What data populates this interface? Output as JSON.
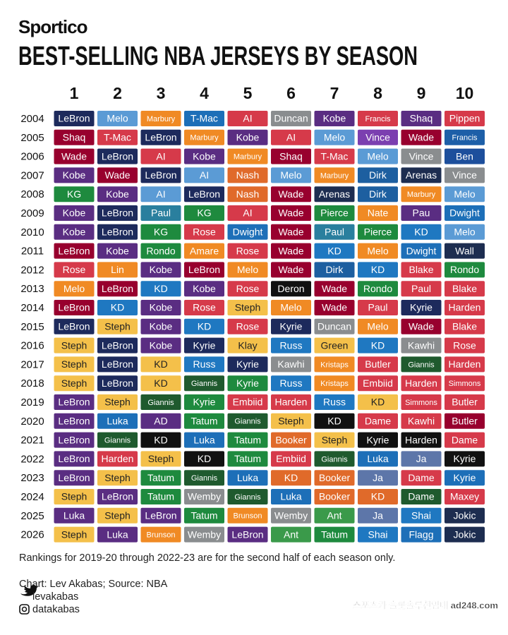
{
  "header": {
    "brand": "Sportico",
    "title": "BEST-SELLING NBA JERSEYS BY SEASON"
  },
  "table": {
    "columns": [
      1,
      2,
      3,
      4,
      5,
      6,
      7,
      8,
      9,
      10
    ],
    "rows": [
      {
        "season": "2004",
        "players": [
          "LeBron",
          "Melo",
          "Marbury",
          "T-Mac",
          "AI",
          "Duncan",
          "Kobe",
          "Francis",
          "Shaq",
          "Pippen"
        ],
        "colors": [
          "#1d2a5c",
          "#5b9bd5",
          "#f08a24",
          "#1d6fb8",
          "#d63a4a",
          "#8a8d8f",
          "#5a2d82",
          "#d63a4a",
          "#5a2d82",
          "#d63a4a"
        ]
      },
      {
        "season": "2005",
        "players": [
          "Shaq",
          "T-Mac",
          "LeBron",
          "Marbury",
          "Kobe",
          "AI",
          "Melo",
          "Vince",
          "Wade",
          "Francis"
        ],
        "colors": [
          "#98002e",
          "#d63a4a",
          "#1d2a5c",
          "#f08a24",
          "#5a2d82",
          "#d63a4a",
          "#5b9bd5",
          "#7b3fb0",
          "#98002e",
          "#1d5fa8"
        ]
      },
      {
        "season": "2006",
        "players": [
          "Wade",
          "LeBron",
          "AI",
          "Kobe",
          "Marbury",
          "Shaq",
          "T-Mac",
          "Melo",
          "Vince",
          "Ben"
        ],
        "colors": [
          "#98002e",
          "#1d2a5c",
          "#d63a4a",
          "#5a2d82",
          "#f08a24",
          "#98002e",
          "#d63a4a",
          "#5b9bd5",
          "#8a8d8f",
          "#1d4f9c"
        ]
      },
      {
        "season": "2007",
        "players": [
          "Kobe",
          "Wade",
          "LeBron",
          "AI",
          "Nash",
          "Melo",
          "Marbury",
          "Dirk",
          "Arenas",
          "Vince"
        ],
        "colors": [
          "#5a2d82",
          "#98002e",
          "#1d2a5c",
          "#5b9bd5",
          "#e06a2a",
          "#5b9bd5",
          "#f08a24",
          "#1d5fa0",
          "#1d2d50",
          "#8a8d8f"
        ]
      },
      {
        "season": "2008",
        "players": [
          "KG",
          "Kobe",
          "AI",
          "LeBron",
          "Nash",
          "Wade",
          "Arenas",
          "Dirk",
          "Marbury",
          "Melo"
        ],
        "colors": [
          "#1e8a3e",
          "#5a2d82",
          "#5b9bd5",
          "#1d2a5c",
          "#e06a2a",
          "#98002e",
          "#1d2d50",
          "#1d5fa0",
          "#f08a24",
          "#5b9bd5"
        ]
      },
      {
        "season": "2009",
        "players": [
          "Kobe",
          "LeBron",
          "Paul",
          "KG",
          "AI",
          "Wade",
          "Pierce",
          "Nate",
          "Pau",
          "Dwight"
        ],
        "colors": [
          "#5a2d82",
          "#1d2a5c",
          "#2a7f9e",
          "#1e8a3e",
          "#d63a4a",
          "#98002e",
          "#1e8a3e",
          "#f08a24",
          "#5a2d82",
          "#1d6fb8"
        ]
      },
      {
        "season": "2010",
        "players": [
          "Kobe",
          "LeBron",
          "KG",
          "Rose",
          "Dwight",
          "Wade",
          "Paul",
          "Pierce",
          "KD",
          "Melo"
        ],
        "colors": [
          "#5a2d82",
          "#1d2a5c",
          "#1e8a3e",
          "#d63a4a",
          "#1d6fb8",
          "#98002e",
          "#2a7f9e",
          "#1e8a3e",
          "#1f78c1",
          "#5b9bd5"
        ]
      },
      {
        "season": "2011",
        "players": [
          "LeBron",
          "Kobe",
          "Rondo",
          "Amare",
          "Rose",
          "Wade",
          "KD",
          "Melo",
          "Dwight",
          "Wall"
        ],
        "colors": [
          "#98002e",
          "#5a2d82",
          "#1e8a3e",
          "#f08a24",
          "#d63a4a",
          "#98002e",
          "#1f78c1",
          "#f08a24",
          "#1d6fb8",
          "#1d2d50"
        ]
      },
      {
        "season": "2012",
        "players": [
          "Rose",
          "Lin",
          "Kobe",
          "LeBron",
          "Melo",
          "Wade",
          "Dirk",
          "KD",
          "Blake",
          "Rondo"
        ],
        "colors": [
          "#d63a4a",
          "#f08a24",
          "#5a2d82",
          "#98002e",
          "#f08a24",
          "#98002e",
          "#1d5fa0",
          "#1f78c1",
          "#d63a4a",
          "#1e8a3e"
        ]
      },
      {
        "season": "2013",
        "players": [
          "Melo",
          "LeBron",
          "KD",
          "Kobe",
          "Rose",
          "Deron",
          "Wade",
          "Rondo",
          "Paul",
          "Blake"
        ],
        "colors": [
          "#f08a24",
          "#98002e",
          "#1f78c1",
          "#5a2d82",
          "#d63a4a",
          "#111111",
          "#98002e",
          "#1e8a3e",
          "#d63a4a",
          "#d63a4a"
        ]
      },
      {
        "season": "2014",
        "players": [
          "LeBron",
          "KD",
          "Kobe",
          "Rose",
          "Steph",
          "Melo",
          "Wade",
          "Paul",
          "Kyrie",
          "Harden"
        ],
        "colors": [
          "#98002e",
          "#1f78c1",
          "#5a2d82",
          "#d63a4a",
          "#f4c04a",
          "#f08a24",
          "#98002e",
          "#d63a4a",
          "#1d2a5c",
          "#d63a4a"
        ]
      },
      {
        "season": "2015",
        "players": [
          "LeBron",
          "Steph",
          "Kobe",
          "KD",
          "Rose",
          "Kyrie",
          "Duncan",
          "Melo",
          "Wade",
          "Blake"
        ],
        "colors": [
          "#1d2a5c",
          "#f4c04a",
          "#5a2d82",
          "#1f78c1",
          "#d63a4a",
          "#1d2a5c",
          "#8a8d8f",
          "#f08a24",
          "#98002e",
          "#d63a4a"
        ]
      },
      {
        "season": "2016",
        "players": [
          "Steph",
          "LeBron",
          "Kobe",
          "Kyrie",
          "Klay",
          "Russ",
          "Green",
          "KD",
          "Kawhi",
          "Rose"
        ],
        "colors": [
          "#f4c04a",
          "#1d2a5c",
          "#5a2d82",
          "#1d2a5c",
          "#f4c04a",
          "#1f78c1",
          "#f4c04a",
          "#1f78c1",
          "#8a8d8f",
          "#d63a4a"
        ]
      },
      {
        "season": "2017",
        "players": [
          "Steph",
          "LeBron",
          "KD",
          "Russ",
          "Kyrie",
          "Kawhi",
          "Kristaps",
          "Butler",
          "Giannis",
          "Harden"
        ],
        "colors": [
          "#f4c04a",
          "#1d2a5c",
          "#f4c04a",
          "#1f78c1",
          "#1d2a5c",
          "#8a8d8f",
          "#f08a24",
          "#d63a4a",
          "#1f5a2e",
          "#d63a4a"
        ]
      },
      {
        "season": "2018",
        "players": [
          "Steph",
          "LeBron",
          "KD",
          "Giannis",
          "Kyrie",
          "Russ",
          "Kristaps",
          "Embiid",
          "Harden",
          "Simmons"
        ],
        "colors": [
          "#f4c04a",
          "#1d2a5c",
          "#f4c04a",
          "#1f5a2e",
          "#1e8a3e",
          "#1f78c1",
          "#f08a24",
          "#d63a4a",
          "#d63a4a",
          "#d63a4a"
        ]
      },
      {
        "season": "2019",
        "players": [
          "LeBron",
          "Steph",
          "Giannis",
          "Kyrie",
          "Embiid",
          "Harden",
          "Russ",
          "KD",
          "Simmons",
          "Butler"
        ],
        "colors": [
          "#5a2d82",
          "#f4c04a",
          "#1f5a2e",
          "#1e8a3e",
          "#d63a4a",
          "#d63a4a",
          "#1f78c1",
          "#f4c04a",
          "#d63a4a",
          "#d63a4a"
        ]
      },
      {
        "season": "2020",
        "players": [
          "LeBron",
          "Luka",
          "AD",
          "Tatum",
          "Giannis",
          "Steph",
          "KD",
          "Dame",
          "Kawhi",
          "Butler"
        ],
        "colors": [
          "#5a2d82",
          "#1d6fb8",
          "#5a2d82",
          "#1e8a3e",
          "#1f5a2e",
          "#f4c04a",
          "#111111",
          "#d63a4a",
          "#d63a4a",
          "#98002e"
        ]
      },
      {
        "season": "2021",
        "players": [
          "LeBron",
          "Giannis",
          "KD",
          "Luka",
          "Tatum",
          "Booker",
          "Steph",
          "Kyrie",
          "Harden",
          "Dame"
        ],
        "colors": [
          "#5a2d82",
          "#1f5a2e",
          "#111111",
          "#1d6fb8",
          "#1e8a3e",
          "#e06a2a",
          "#f4c04a",
          "#111111",
          "#111111",
          "#d63a4a"
        ]
      },
      {
        "season": "2022",
        "players": [
          "LeBron",
          "Harden",
          "Steph",
          "KD",
          "Tatum",
          "Embiid",
          "Giannis",
          "Luka",
          "Ja",
          "Kyrie"
        ],
        "colors": [
          "#5a2d82",
          "#d63a4a",
          "#f4c04a",
          "#111111",
          "#1e8a3e",
          "#d63a4a",
          "#1f5a2e",
          "#1d6fb8",
          "#5d76a9",
          "#111111"
        ]
      },
      {
        "season": "2023",
        "players": [
          "LeBron",
          "Steph",
          "Tatum",
          "Giannis",
          "Luka",
          "KD",
          "Booker",
          "Ja",
          "Dame",
          "Kyrie"
        ],
        "colors": [
          "#5a2d82",
          "#f4c04a",
          "#1e8a3e",
          "#1f5a2e",
          "#1d6fb8",
          "#e06a2a",
          "#e06a2a",
          "#5d76a9",
          "#d63a4a",
          "#1d6fb8"
        ]
      },
      {
        "season": "2024",
        "players": [
          "Steph",
          "LeBron",
          "Tatum",
          "Wemby",
          "Giannis",
          "Luka",
          "Booker",
          "KD",
          "Dame",
          "Maxey"
        ],
        "colors": [
          "#f4c04a",
          "#5a2d82",
          "#1e8a3e",
          "#8a8d8f",
          "#1f5a2e",
          "#1d6fb8",
          "#e06a2a",
          "#e06a2a",
          "#1f5a2e",
          "#d63a4a"
        ]
      },
      {
        "season": "2025",
        "players": [
          "Luka",
          "Steph",
          "LeBron",
          "Tatum",
          "Brunson",
          "Wemby",
          "Ant",
          "Ja",
          "Shai",
          "Jokic"
        ],
        "colors": [
          "#5a2d82",
          "#f4c04a",
          "#5a2d82",
          "#1e8a3e",
          "#f08a24",
          "#8a8d8f",
          "#3a9a4a",
          "#5d76a9",
          "#1f78c1",
          "#1d2d50"
        ]
      },
      {
        "season": "2026",
        "players": [
          "Steph",
          "Luka",
          "Brunson",
          "Wemby",
          "LeBron",
          "Ant",
          "Tatum",
          "Shai",
          "Flagg",
          "Jokic"
        ],
        "colors": [
          "#f4c04a",
          "#5a2d82",
          "#f08a24",
          "#8a8d8f",
          "#5a2d82",
          "#3a9a4a",
          "#1e8a3e",
          "#1f78c1",
          "#1d6fb8",
          "#1d2d50"
        ]
      }
    ]
  },
  "footer": {
    "note": "Rankings for 2019-20 through 2022-23 are for the second half of each season only.",
    "source": "Chart: Lev Akabas; Source: NBA",
    "twitter": "levakabas",
    "instagram": "datakabas",
    "watermark": "스포츠카 슬롯솔루션임대 ad248.com"
  }
}
